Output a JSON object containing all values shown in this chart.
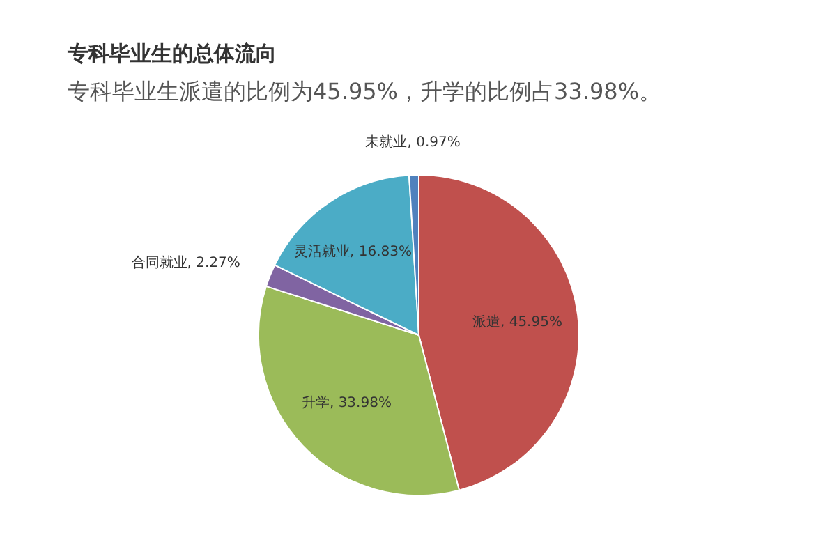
{
  "chart_data": {
    "type": "pie",
    "title": "专科毕业生的总体流向",
    "subtitle": "专科毕业生派遣的比例为45.95%，升学的比例占33.98%。",
    "categories": [
      "派遣",
      "升学",
      "合同就业",
      "灵活就业",
      "未就业"
    ],
    "values": [
      45.95,
      33.98,
      2.27,
      16.83,
      0.97
    ],
    "value_labels": [
      "45.95%",
      "33.98%",
      "2.27%",
      "16.83%",
      "0.97%"
    ],
    "colors": [
      "#c0504d",
      "#9bbb59",
      "#8064a2",
      "#4bacc6",
      "#4f81bd"
    ]
  }
}
